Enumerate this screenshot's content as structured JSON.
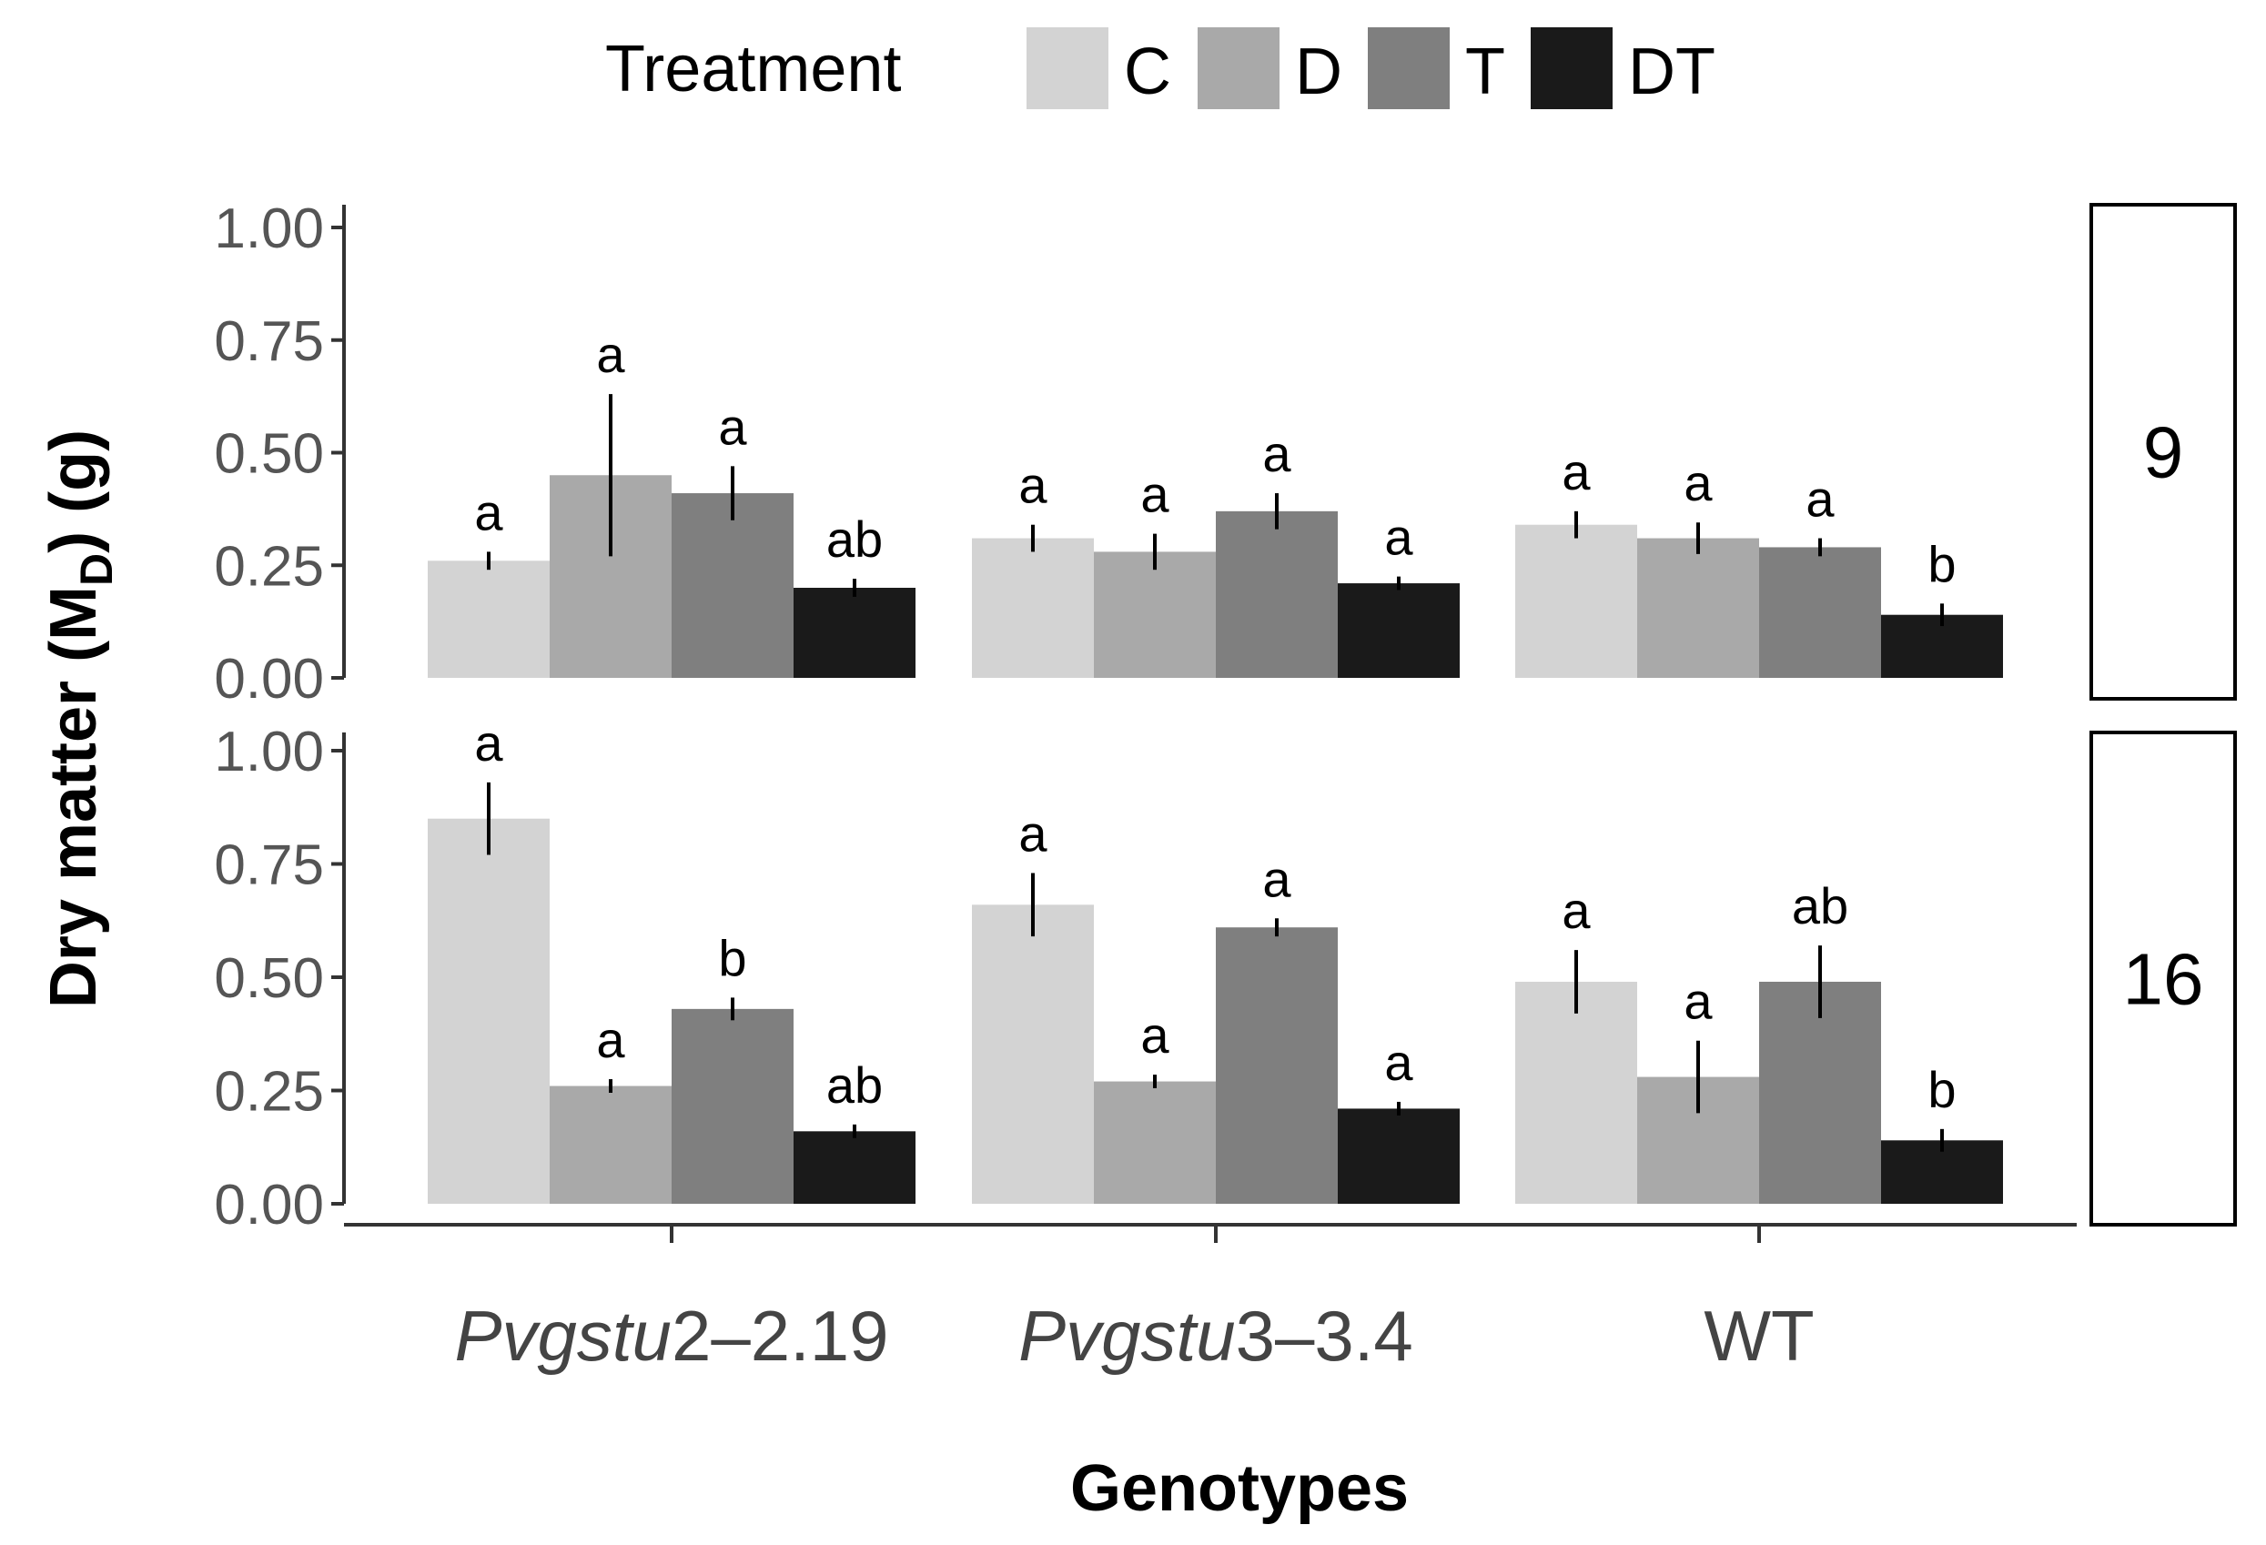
{
  "chart_data": {
    "type": "bar",
    "legend": {
      "title": "Treatment",
      "position": "top",
      "items": [
        {
          "label": "C",
          "color": "#d3d3d3"
        },
        {
          "label": "D",
          "color": "#a9a9a9"
        },
        {
          "label": "T",
          "color": "#7f7f7f"
        },
        {
          "label": "DT",
          "color": "#1a1a1a"
        }
      ]
    },
    "ylabel": {
      "main": "Dry matter (M",
      "sub": "D",
      "end": ") (g)"
    },
    "xlabel": "Genotypes",
    "categories": [
      {
        "italic": "Pvgstu",
        "rest": "2–2.19"
      },
      {
        "italic": "Pvgstu",
        "rest": "3–3.4"
      },
      {
        "italic": "",
        "rest": "WT"
      }
    ],
    "ylim": [
      0,
      1.0
    ],
    "yticks": [
      "0.00",
      "0.25",
      "0.50",
      "0.75",
      "1.00"
    ],
    "grid": false,
    "panels": [
      {
        "strip": "9",
        "series": [
          {
            "name": "C",
            "values": [
              0.26,
              0.31,
              0.34
            ],
            "errors": [
              0.02,
              0.03,
              0.03
            ],
            "letters": [
              "a",
              "a",
              "a"
            ]
          },
          {
            "name": "D",
            "values": [
              0.45,
              0.28,
              0.31
            ],
            "errors": [
              0.18,
              0.04,
              0.035
            ],
            "letters": [
              "a",
              "a",
              "a"
            ]
          },
          {
            "name": "T",
            "values": [
              0.41,
              0.37,
              0.29
            ],
            "errors": [
              0.06,
              0.04,
              0.02
            ],
            "letters": [
              "a",
              "a",
              "a"
            ]
          },
          {
            "name": "DT",
            "values": [
              0.2,
              0.21,
              0.14
            ],
            "errors": [
              0.02,
              0.015,
              0.025
            ],
            "letters": [
              "ab",
              "a",
              "b"
            ]
          }
        ]
      },
      {
        "strip": "16",
        "series": [
          {
            "name": "C",
            "values": [
              0.85,
              0.66,
              0.49
            ],
            "errors": [
              0.08,
              0.07,
              0.07
            ],
            "letters": [
              "a",
              "a",
              "a"
            ]
          },
          {
            "name": "D",
            "values": [
              0.26,
              0.27,
              0.28
            ],
            "errors": [
              0.015,
              0.015,
              0.08
            ],
            "letters": [
              "a",
              "a",
              "a"
            ]
          },
          {
            "name": "T",
            "values": [
              0.43,
              0.61,
              0.49
            ],
            "errors": [
              0.025,
              0.02,
              0.08
            ],
            "letters": [
              "b",
              "a",
              "ab"
            ]
          },
          {
            "name": "DT",
            "values": [
              0.16,
              0.21,
              0.14
            ],
            "errors": [
              0.015,
              0.015,
              0.025
            ],
            "letters": [
              "ab",
              "a",
              "b"
            ]
          }
        ]
      }
    ]
  }
}
